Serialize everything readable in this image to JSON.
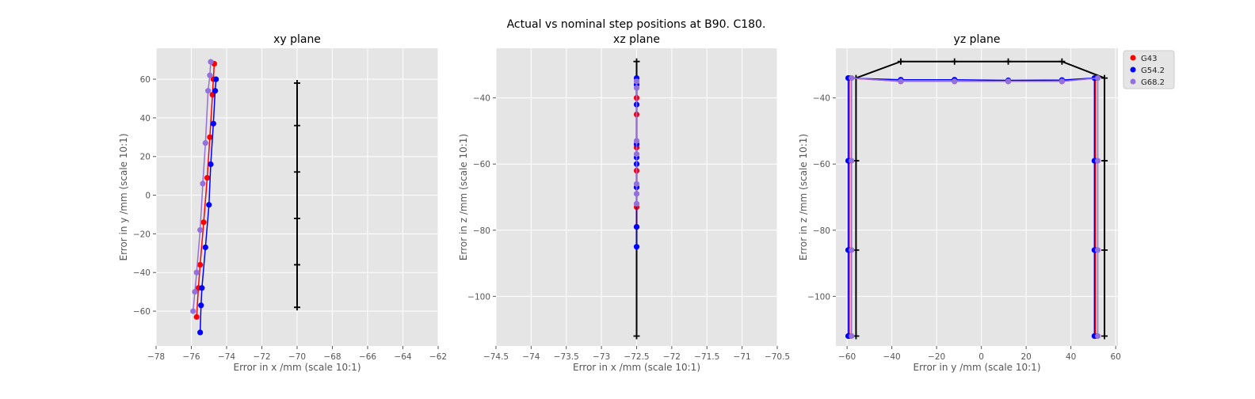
{
  "figure": {
    "title": "Actual vs nominal step positions at B90. C180."
  },
  "legend": {
    "entries": [
      {
        "name": "G43",
        "color": "#ff0000"
      },
      {
        "name": "G54.2",
        "color": "#0000ff"
      },
      {
        "name": "G68.2",
        "color": "#9370db"
      }
    ],
    "placement": "outside-top-right"
  },
  "chart_data": [
    {
      "type": "line",
      "title": "xy plane",
      "xlabel": "Error in x /mm (scale 10:1)",
      "ylabel": "Error in y /mm (scale 10:1)",
      "xlim": [
        -78,
        -62
      ],
      "ylim": [
        -78,
        76
      ],
      "xticks": [
        -78,
        -76,
        -74,
        -72,
        -70,
        -68,
        -66,
        -64,
        -62
      ],
      "yticks": [
        -60,
        -40,
        -20,
        0,
        20,
        40,
        60
      ],
      "grid": true,
      "nominal": {
        "color": "#000000",
        "x": [
          -70,
          -70,
          -70,
          -70,
          -70,
          -70
        ],
        "y": [
          -58,
          -36,
          -12,
          12,
          36,
          58
        ]
      },
      "series": [
        {
          "name": "G43",
          "color": "#ff0000",
          "x": [
            -75.7,
            -75.6,
            -75.5,
            -75.3,
            -75.1,
            -74.95,
            -74.8,
            -74.75,
            -74.7
          ],
          "y": [
            -63,
            -48,
            -36,
            -14,
            9,
            30,
            52,
            60,
            68
          ]
        },
        {
          "name": "G54.2",
          "color": "#0000ff",
          "x": [
            -75.5,
            -75.45,
            -75.4,
            -75.2,
            -75.0,
            -74.9,
            -74.75,
            -74.65,
            -74.6
          ],
          "y": [
            -71,
            -57,
            -48,
            -27,
            -5,
            16,
            37,
            54,
            60
          ]
        },
        {
          "name": "G68.2",
          "color": "#9370db",
          "x": [
            -75.9,
            -75.8,
            -75.7,
            -75.5,
            -75.35,
            -75.2,
            -75.05,
            -74.95,
            -74.9
          ],
          "y": [
            -60,
            -50,
            -40,
            -18,
            6,
            27,
            54,
            62,
            69
          ]
        }
      ]
    },
    {
      "type": "line",
      "title": "xz plane",
      "xlabel": "Error in x /mm (scale 10:1)",
      "ylabel": "Error in z /mm (scale 10:1)",
      "xlim": [
        -74.5,
        -70.5
      ],
      "ylim": [
        -115,
        -25
      ],
      "xticks": [
        -74.5,
        -74.0,
        -73.5,
        -73.0,
        -72.5,
        -72.0,
        -71.5,
        -71.0,
        -70.5
      ],
      "yticks": [
        -100,
        -80,
        -60,
        -40
      ],
      "grid": true,
      "nominal": {
        "color": "#000000",
        "x": [
          -72.5,
          -72.5
        ],
        "y": [
          -112,
          -29
        ]
      },
      "series": [
        {
          "name": "G43",
          "color": "#ff0000",
          "x": [
            -72.5,
            -72.5,
            -72.5,
            -72.5,
            -72.5,
            -72.5,
            -72.5
          ],
          "y": [
            -79,
            -73,
            -67,
            -62,
            -55,
            -45,
            -40
          ]
        },
        {
          "name": "G54.2",
          "color": "#0000ff",
          "x": [
            -72.5,
            -72.5,
            -72.5,
            -72.5,
            -72.5,
            -72.5,
            -72.5,
            -72.5,
            -72.5
          ],
          "y": [
            -85,
            -79,
            -67,
            -60,
            -58,
            -54,
            -42,
            -36,
            -34
          ]
        },
        {
          "name": "G68.2",
          "color": "#9370db",
          "x": [
            -72.5,
            -72.5,
            -72.5,
            -72.5,
            -72.5,
            -72.5,
            -72.5
          ],
          "y": [
            -72,
            -69,
            -66,
            -57,
            -53,
            -37,
            -35
          ]
        }
      ]
    },
    {
      "type": "line",
      "title": "yz plane",
      "xlabel": "Error in y /mm (scale 10:1)",
      "ylabel": "Error in z /mm (scale 10:1)",
      "xlim": [
        -65,
        61
      ],
      "ylim": [
        -115,
        -25
      ],
      "xticks": [
        -60,
        -40,
        -20,
        0,
        20,
        40,
        60
      ],
      "yticks": [
        -100,
        -80,
        -60,
        -40
      ],
      "grid": true,
      "nominal": {
        "color": "#000000",
        "x": [
          -56,
          -56,
          -56,
          -56,
          -36,
          -12,
          12,
          36,
          55,
          55,
          55,
          55
        ],
        "y": [
          -112,
          -86,
          -59,
          -34,
          -29,
          -29,
          -29,
          -29,
          -34,
          -59,
          -86,
          -112
        ]
      },
      "series": [
        {
          "name": "G43",
          "color": "#ff0000",
          "x": [
            -59,
            -59,
            -59,
            -59,
            -36,
            -12,
            12,
            36,
            51,
            51,
            51,
            51
          ],
          "y": [
            -112,
            -86,
            -59,
            -34,
            -35,
            -35,
            -35,
            -35,
            -34,
            -59,
            -86,
            -112
          ]
        },
        {
          "name": "G54.2",
          "color": "#0000ff",
          "x": [
            -59.5,
            -59.5,
            -59.5,
            -59.5,
            -36,
            -12,
            12,
            36,
            50.5,
            50.5,
            50.5,
            50.5
          ],
          "y": [
            -112,
            -86,
            -59,
            -34,
            -34.5,
            -34.5,
            -34.7,
            -34.6,
            -34,
            -59,
            -86,
            -112
          ]
        },
        {
          "name": "G68.2",
          "color": "#9370db",
          "x": [
            -58,
            -58,
            -58,
            -58,
            -36,
            -12,
            12,
            36,
            52,
            52,
            52,
            52
          ],
          "y": [
            -112,
            -86,
            -59,
            -34,
            -35,
            -35,
            -35,
            -35,
            -34,
            -59,
            -86,
            -112
          ]
        }
      ]
    }
  ]
}
